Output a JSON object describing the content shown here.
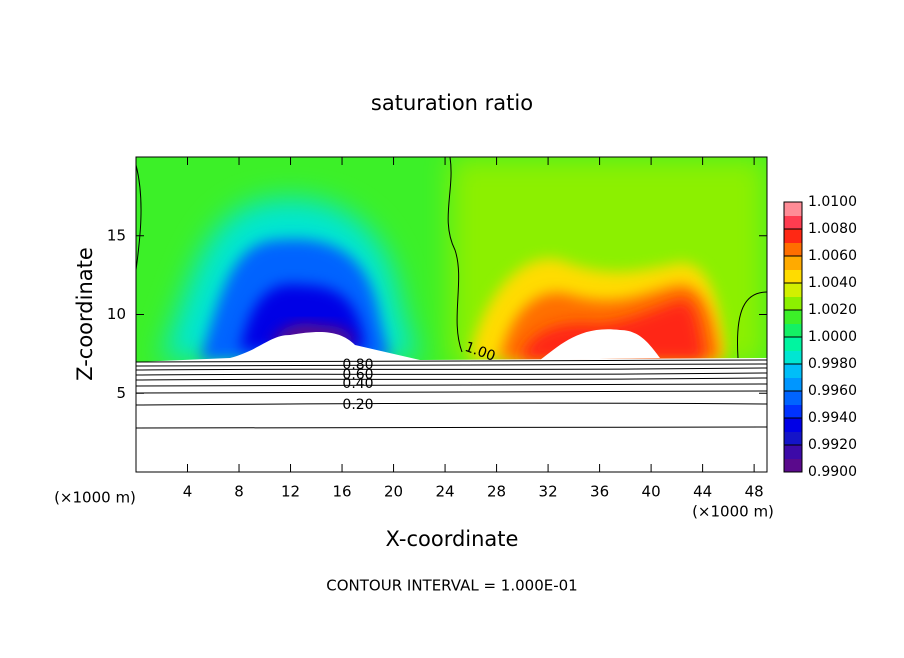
{
  "chart_data": {
    "type": "contour",
    "title": "saturation ratio",
    "x_label": "X-coordinate",
    "y_label": "Z-coordinate",
    "x_unit": "(×1000 m)",
    "x_unit_right": "(×1000 m)",
    "footer": "CONTOUR INTERVAL = 1.000E-01",
    "xlim": [
      0,
      49
    ],
    "ylim": [
      0,
      20
    ],
    "xticks": [
      4,
      8,
      12,
      16,
      20,
      24,
      28,
      32,
      36,
      40,
      44,
      48
    ],
    "yticks": [
      5,
      10,
      15
    ],
    "colorbar_lim": [
      0.99,
      1.01
    ],
    "colorbar_ticks": [
      {
        "value": 0.99,
        "label": "0.9900"
      },
      {
        "value": 0.992,
        "label": "0.9920"
      },
      {
        "value": 0.994,
        "label": "0.9940"
      },
      {
        "value": 0.996,
        "label": "0.9960"
      },
      {
        "value": 0.998,
        "label": "0.9980"
      },
      {
        "value": 1.0,
        "label": "1.0000"
      },
      {
        "value": 1.002,
        "label": "1.0020"
      },
      {
        "value": 1.004,
        "label": "1.0040"
      },
      {
        "value": 1.006,
        "label": "1.0060"
      },
      {
        "value": 1.008,
        "label": "1.0080"
      },
      {
        "value": 1.01,
        "label": "1.0100"
      }
    ],
    "colormap": [
      "#5a0a8c",
      "#3c0aa8",
      "#1414c8",
      "#0000e6",
      "#0032ff",
      "#0064ff",
      "#0096ff",
      "#00bef8",
      "#00e6d2",
      "#00f5a0",
      "#14f064",
      "#3cf028",
      "#8cf000",
      "#d2f000",
      "#ffdc00",
      "#ffaa00",
      "#ff6e00",
      "#ff2814",
      "#ff3c50",
      "#ff8c96"
    ],
    "contour_levels": [
      {
        "value": 0.2,
        "label": "0.20"
      },
      {
        "value": 0.4,
        "label": "0.40"
      },
      {
        "value": 0.6,
        "label": "0.60"
      },
      {
        "value": 0.8,
        "label": "0.80"
      },
      {
        "value": 1.0,
        "label": "1.00"
      }
    ]
  }
}
